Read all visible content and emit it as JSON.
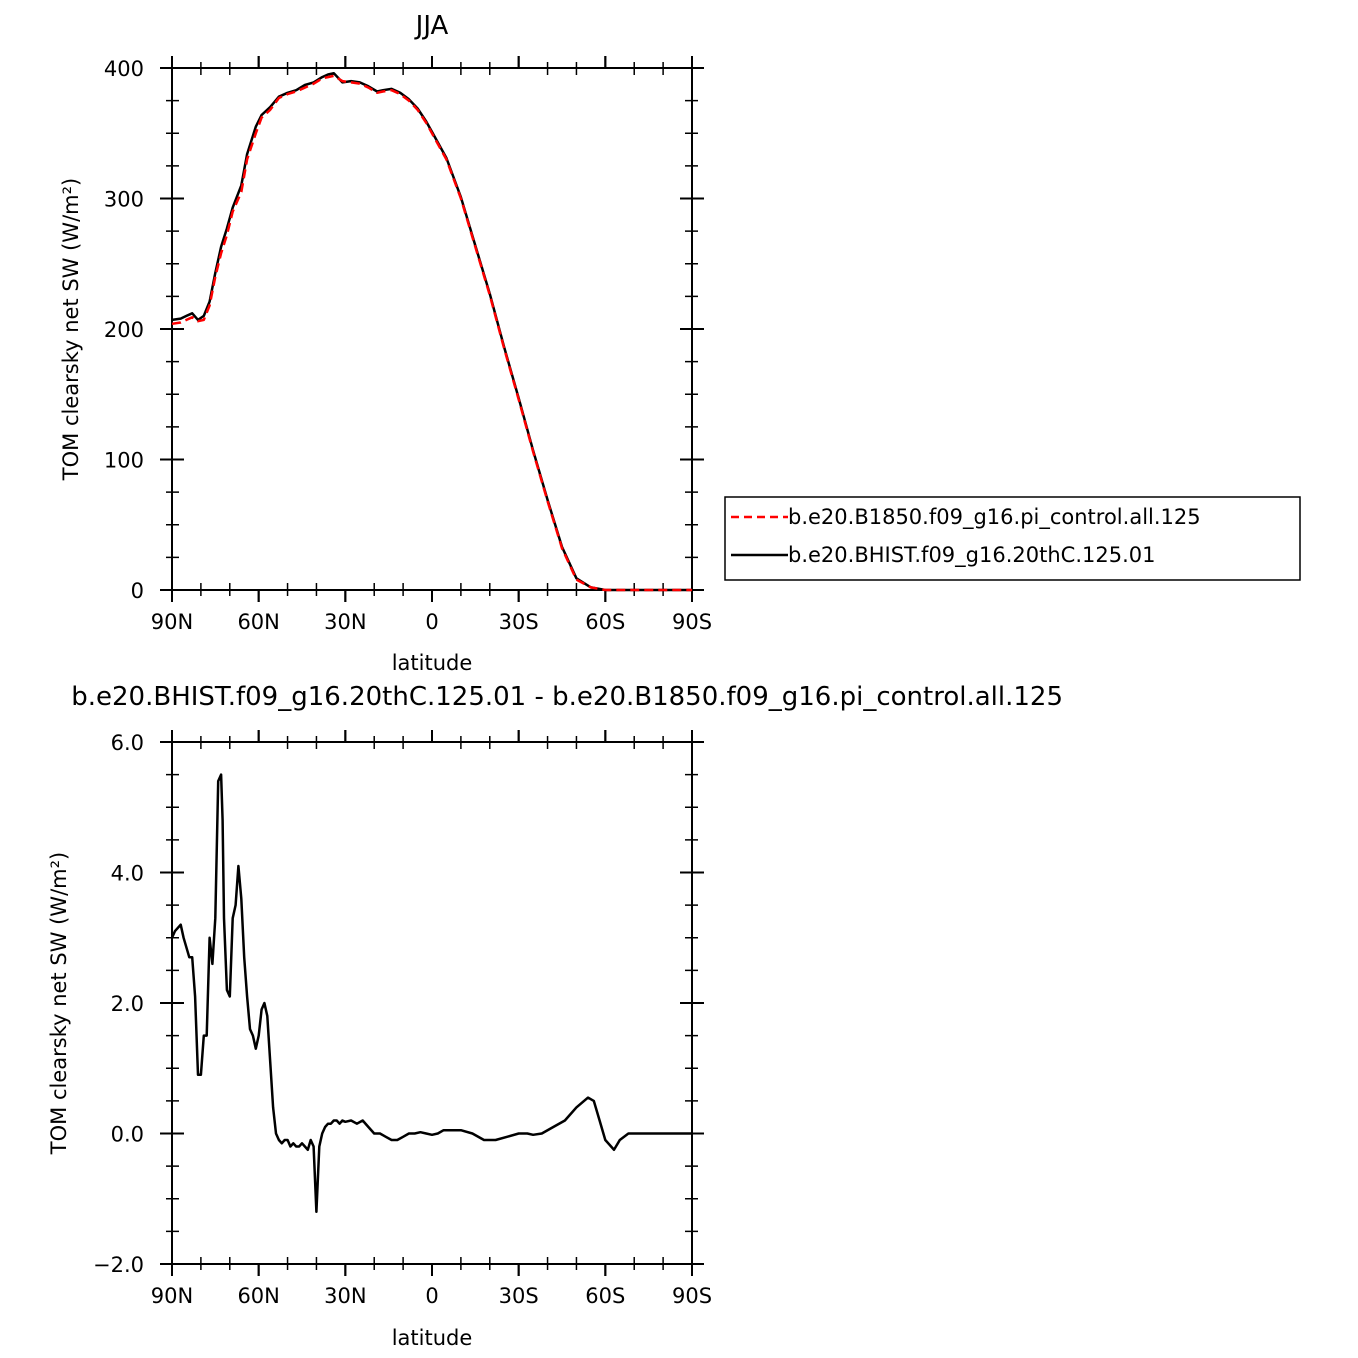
{
  "chart_data": [
    {
      "type": "line",
      "title": "JJA",
      "xlabel": "latitude",
      "ylabel": "TOM clearsky net SW (W/m²)",
      "xlim": [
        90,
        -90
      ],
      "ylim": [
        0,
        400
      ],
      "x_ticks": [
        90,
        60,
        30,
        0,
        -30,
        -60,
        -90
      ],
      "x_tick_labels": [
        "90N",
        "60N",
        "30N",
        "0",
        "30S",
        "60S",
        "90S"
      ],
      "y_ticks": [
        0,
        100,
        200,
        300,
        400
      ],
      "y_tick_labels": [
        "0",
        "100",
        "200",
        "300",
        "400"
      ],
      "grid": false,
      "legend": "right",
      "series": [
        {
          "name": "b.e20.B1850.f09_g16.pi_control.all.125",
          "color": "#ff0000",
          "style": "dashed",
          "x": [
            90,
            87,
            85,
            83,
            81,
            79,
            77,
            75,
            73,
            71,
            69,
            66,
            64,
            61,
            59,
            56,
            53,
            50,
            47,
            44,
            41,
            38,
            36,
            34,
            31,
            28,
            25,
            22,
            19,
            17,
            14,
            11,
            8,
            5,
            2,
            0,
            -5,
            -10,
            -15,
            -20,
            -25,
            -30,
            -35,
            -40,
            -45,
            -50,
            -55,
            -60,
            -63,
            -65,
            -70,
            -75,
            -80,
            -85,
            -90
          ],
          "y": [
            204,
            205,
            207,
            209,
            206,
            207,
            218,
            240,
            258,
            272,
            290,
            305,
            330,
            350,
            362,
            368,
            377,
            380,
            382,
            385,
            388,
            392,
            393,
            394,
            390,
            389,
            388,
            385,
            381,
            382,
            383,
            380,
            375,
            368,
            358,
            350,
            330,
            300,
            263,
            226,
            185,
            146,
            106,
            68,
            32,
            8,
            2,
            0,
            0,
            0,
            0,
            0,
            0,
            0,
            0
          ]
        },
        {
          "name": "b.e20.BHIST.f09_g16.20thC.125.01",
          "color": "#000000",
          "style": "solid",
          "x": [
            90,
            87,
            85,
            83,
            81,
            79,
            77,
            75,
            73,
            71,
            69,
            66,
            64,
            61,
            59,
            56,
            53,
            50,
            47,
            44,
            41,
            38,
            36,
            34,
            31,
            28,
            25,
            22,
            19,
            17,
            14,
            11,
            8,
            5,
            2,
            0,
            -5,
            -10,
            -15,
            -20,
            -25,
            -30,
            -35,
            -40,
            -45,
            -50,
            -55,
            -60,
            -63,
            -65,
            -70,
            -75,
            -80,
            -85,
            -90
          ],
          "y": [
            207,
            208,
            210,
            212,
            207,
            210,
            221,
            243,
            263,
            277,
            293,
            310,
            334,
            355,
            364,
            370,
            378,
            381,
            383,
            387,
            389,
            393,
            395,
            396,
            389,
            390,
            389,
            386,
            382,
            383,
            384,
            381,
            376,
            369,
            359,
            351,
            331,
            301,
            264,
            227,
            186,
            147,
            107,
            69,
            33,
            9,
            2,
            0,
            0,
            0,
            0,
            0,
            0,
            0,
            0
          ]
        }
      ]
    },
    {
      "type": "line",
      "title": "b.e20.BHIST.f09_g16.20thC.125.01 - b.e20.B1850.f09_g16.pi_control.all.125",
      "xlabel": "latitude",
      "ylabel": "TOM clearsky net SW (W/m²)",
      "xlim": [
        90,
        -90
      ],
      "ylim": [
        -2.0,
        6.0
      ],
      "x_ticks": [
        90,
        60,
        30,
        0,
        -30,
        -60,
        -90
      ],
      "x_tick_labels": [
        "90N",
        "60N",
        "30N",
        "0",
        "30S",
        "60S",
        "90S"
      ],
      "y_ticks": [
        -2.0,
        0.0,
        2.0,
        4.0,
        6.0
      ],
      "y_tick_labels": [
        "−2.0",
        "0.0",
        "2.0",
        "4.0",
        "6.0"
      ],
      "grid": false,
      "series": [
        {
          "color": "#000000",
          "style": "solid",
          "x": [
            90,
            89,
            87,
            86,
            84,
            83,
            82,
            81,
            80,
            79,
            78,
            77,
            76,
            75,
            74,
            73,
            72.5,
            72,
            71,
            70,
            69,
            68,
            67,
            66,
            65,
            64,
            63,
            62,
            61,
            60,
            59,
            58,
            57,
            56,
            55,
            54,
            53,
            52,
            51,
            50,
            49,
            48,
            47,
            46,
            45,
            44,
            43,
            42,
            41,
            40,
            39,
            38,
            37,
            36,
            35,
            34,
            33,
            32,
            31,
            30,
            28,
            26,
            24,
            22,
            20,
            18,
            16,
            14,
            12,
            10,
            8,
            6,
            4,
            2,
            0,
            -2,
            -4,
            -6,
            -8,
            -10,
            -14,
            -18,
            -22,
            -26,
            -30,
            -33,
            -35,
            -38,
            -42,
            -46,
            -50,
            -54,
            -56,
            -58,
            -60,
            -62,
            -63,
            -65,
            -68,
            -72,
            -78,
            -85,
            -90
          ],
          "y": [
            3.0,
            3.1,
            3.2,
            3.0,
            2.7,
            2.7,
            2.1,
            0.9,
            0.9,
            1.5,
            1.5,
            3.0,
            2.6,
            3.3,
            5.4,
            5.5,
            4.8,
            3.3,
            2.2,
            2.1,
            3.3,
            3.5,
            4.1,
            3.6,
            2.7,
            2.1,
            1.6,
            1.5,
            1.3,
            1.5,
            1.9,
            2.0,
            1.8,
            1.1,
            0.4,
            0.0,
            -0.1,
            -0.15,
            -0.1,
            -0.1,
            -0.2,
            -0.15,
            -0.2,
            -0.2,
            -0.15,
            -0.2,
            -0.25,
            -0.1,
            -0.2,
            -1.2,
            -0.2,
            0.0,
            0.1,
            0.15,
            0.15,
            0.2,
            0.2,
            0.15,
            0.2,
            0.18,
            0.2,
            0.15,
            0.2,
            0.1,
            0.0,
            0.0,
            -0.05,
            -0.1,
            -0.1,
            -0.05,
            0.0,
            0.0,
            0.02,
            0.0,
            -0.02,
            0.0,
            0.05,
            0.05,
            0.05,
            0.05,
            0.0,
            -0.1,
            -0.1,
            -0.05,
            0.0,
            0.0,
            -0.02,
            0.0,
            0.1,
            0.2,
            0.4,
            0.55,
            0.5,
            0.2,
            -0.1,
            -0.2,
            -0.25,
            -0.1,
            0.0,
            0.0,
            0.0,
            0.0,
            0.0
          ]
        }
      ]
    }
  ]
}
